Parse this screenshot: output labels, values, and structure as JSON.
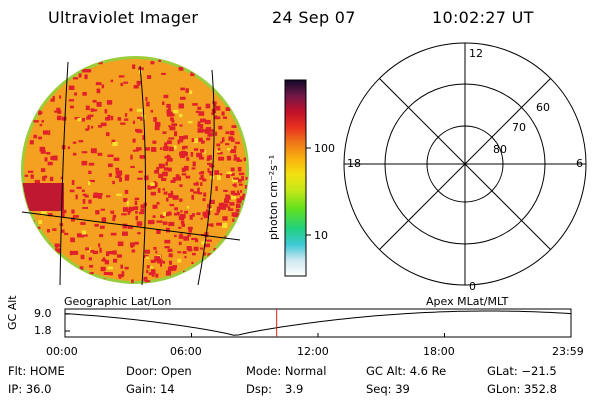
{
  "header": {
    "instrument": "Ultraviolet Imager",
    "date": "24 Sep 07",
    "time": "10:02:27 UT"
  },
  "colorbar": {
    "unit_label": "photon cm⁻²s⁻¹",
    "ticks": [
      "100",
      "10"
    ]
  },
  "polar_grid": {
    "mlt_labels": {
      "top": "12",
      "left": "18",
      "right": "6",
      "bottom": "0"
    },
    "lat_labels": [
      "60",
      "70",
      "80"
    ]
  },
  "footer_labels": {
    "geographic": "Geographic Lat/Lon",
    "apex": "Apex MLat/MLT"
  },
  "altitude_plot": {
    "ylabel": "GC Alt",
    "yticks": [
      "9.0",
      "1.8"
    ],
    "xticks": [
      "00:00",
      "06:00",
      "12:00",
      "18:00",
      "23:59"
    ],
    "current_time_hours": 10.04
  },
  "info": {
    "flt": "Flt: HOME",
    "door": "Door: Open",
    "mode": "Mode: Normal",
    "gc_alt": "GC Alt: 4.6 Re",
    "glat": "GLat: −21.5",
    "ip": "IP: 36.0",
    "gain": "Gain: 14",
    "dsp_label": "Dsp:",
    "dsp_value": "3.9",
    "seq": "Seq: 39",
    "glon": "GLon: 352.8"
  },
  "colors": {
    "disk_base": "#f4a020",
    "disk_hot": "#e0202a",
    "disk_rim": "#9ccc3a",
    "alt_marker": "#cc2222"
  }
}
